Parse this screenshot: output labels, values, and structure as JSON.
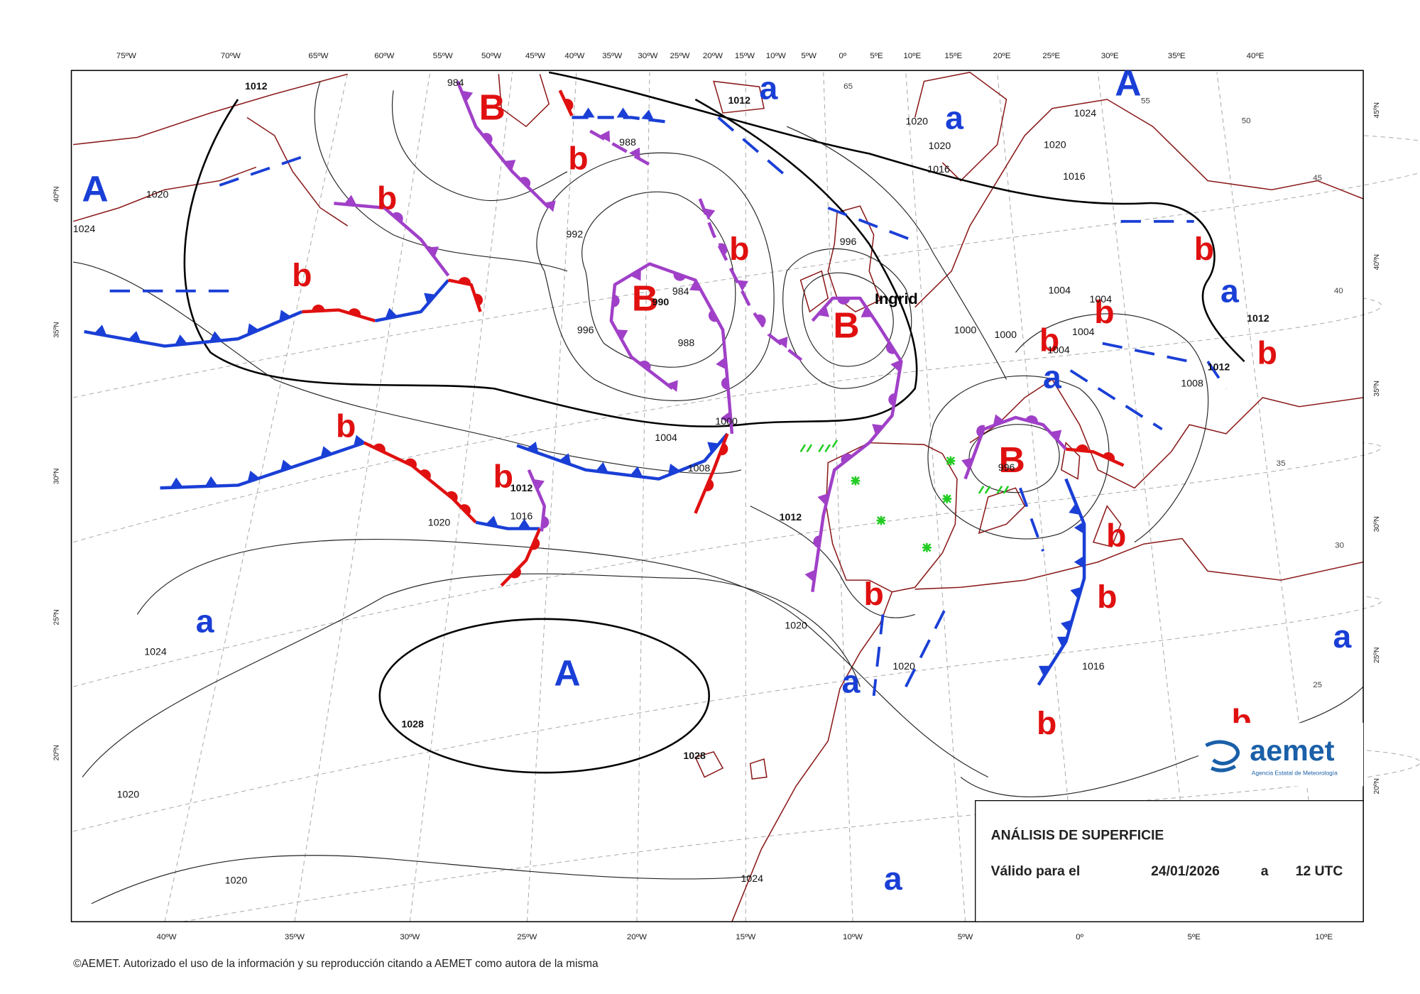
{
  "top_axis_labels": [
    "75ºW",
    "70ºW",
    "65ºW",
    "60ºW",
    "55ºW",
    "50ºW",
    "45ºW",
    "40ºW",
    "35ºW",
    "30ºW",
    "25ºW",
    "20ºW",
    "15ºW",
    "10ºW",
    "5ºW",
    "0º",
    "5ºE",
    "10ºE",
    "15ºE",
    "20ºE",
    "25ºE",
    "30ºE",
    "35ºE",
    "40ºE"
  ],
  "bottom_axis_labels": [
    "40ºW",
    "35ºW",
    "30ºW",
    "25ºW",
    "20ºW",
    "15ºW",
    "10ºW",
    "5ºW",
    "0º",
    "5ºE",
    "10ºE"
  ],
  "left_axis_labels": [
    "40ºN",
    "35ºN",
    "30ºN",
    "25ºN",
    "20ºN"
  ],
  "right_axis_labels": [
    "45ºN",
    "40ºN",
    "35ºN",
    "30ºN",
    "25ºN",
    "20ºN"
  ],
  "inner_latitude_labels": [
    "65",
    "55",
    "50",
    "45",
    "40",
    "35",
    "30",
    "25"
  ],
  "high_centers": [
    "A",
    "A",
    "A"
  ],
  "relative_highs": [
    "a",
    "a",
    "a",
    "a",
    "a",
    "a",
    "a",
    "a"
  ],
  "low_centers": [
    "B",
    "B",
    "B",
    "B"
  ],
  "relative_lows": [
    "b",
    "b",
    "b",
    "b",
    "b",
    "b",
    "b",
    "b",
    "b",
    "b",
    "b",
    "b",
    "b",
    "b",
    "b"
  ],
  "isobar_labels": [
    1012,
    1012,
    1012,
    1012,
    1012,
    1012,
    1020,
    1020,
    1020,
    1020,
    1020,
    1020,
    1020,
    1020,
    1020,
    1024,
    1024,
    1024,
    1024,
    984,
    984,
    988,
    988,
    992,
    996,
    996,
    996,
    1000,
    1000,
    1000,
    1004,
    1004,
    1004,
    1004,
    1004,
    1008,
    1008,
    1016,
    1016,
    1016,
    1016,
    1028,
    1028,
    990
  ],
  "storm_name": "Ingrid",
  "info_box": {
    "title": "ANÁLISIS DE SUPERFICIE",
    "valid_for": "Válido para el",
    "date": "24/01/2026",
    "at": "a",
    "time": "12 UTC"
  },
  "logo": {
    "name": "aemet",
    "subtitle": "Agencia Estatal de Meteorología"
  },
  "footer": "©AEMET. Autorizado el uso de la información y su reproducción citando a AEMET como autora de la misma"
}
